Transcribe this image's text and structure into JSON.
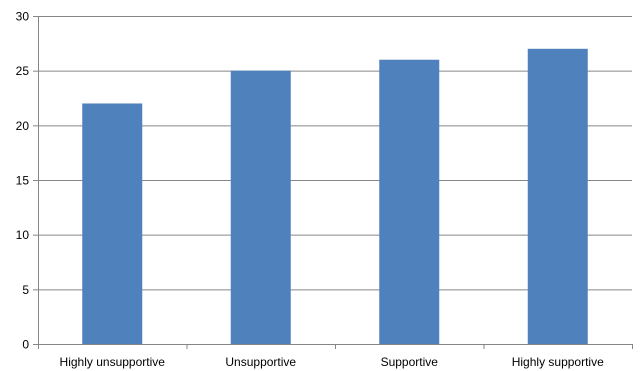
{
  "chart_data": {
    "type": "bar",
    "title": "",
    "xlabel": "",
    "ylabel": "",
    "categories": [
      "Highly unsupportive",
      "Unsupportive",
      "Supportive",
      "Highly supportive"
    ],
    "values": [
      22,
      25,
      26,
      27
    ],
    "ylim": [
      0,
      30
    ],
    "yticks": [
      0,
      5,
      10,
      15,
      20,
      25,
      30
    ],
    "grid": true,
    "legend": "none",
    "bar_color": "#4F81BD",
    "grid_color": "#868686"
  }
}
